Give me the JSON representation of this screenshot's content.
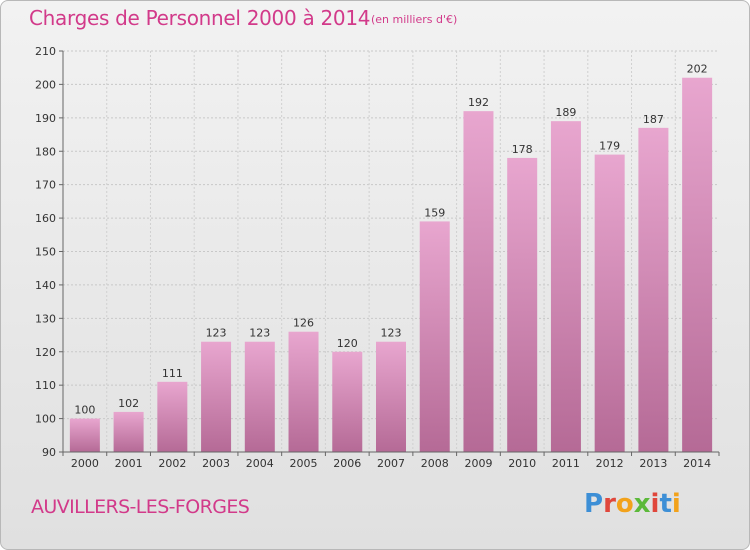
{
  "header": {
    "title": "Charges de Personnel 2000 à 2014",
    "unit": "(en milliers d'€)"
  },
  "footer": {
    "commune": "AUVILLERS-LES-FORGES",
    "brand": "Proxiti"
  },
  "colors": {
    "accent": "#d23a8a",
    "bar_top": "#e8a6cf",
    "bar_bottom": "#b56a96",
    "logo_letters": [
      "#3d8fd6",
      "#e0473c",
      "#f2a21b",
      "#5cb93a",
      "#e0473c",
      "#3d8fd6",
      "#f2a21b"
    ]
  },
  "chart_data": {
    "type": "bar",
    "title": "Charges de Personnel 2000 à 2014",
    "subtitle": "(en milliers d'€)",
    "categories": [
      "2000",
      "2001",
      "2002",
      "2003",
      "2004",
      "2005",
      "2006",
      "2007",
      "2008",
      "2009",
      "2010",
      "2011",
      "2012",
      "2013",
      "2014"
    ],
    "values": [
      100,
      102,
      111,
      123,
      123,
      126,
      120,
      123,
      159,
      192,
      178,
      189,
      179,
      187,
      202
    ],
    "ylim": [
      90,
      210
    ],
    "yticks": [
      90,
      100,
      110,
      120,
      130,
      140,
      150,
      160,
      170,
      180,
      190,
      200,
      210
    ],
    "grid": true,
    "data_labels": true
  }
}
